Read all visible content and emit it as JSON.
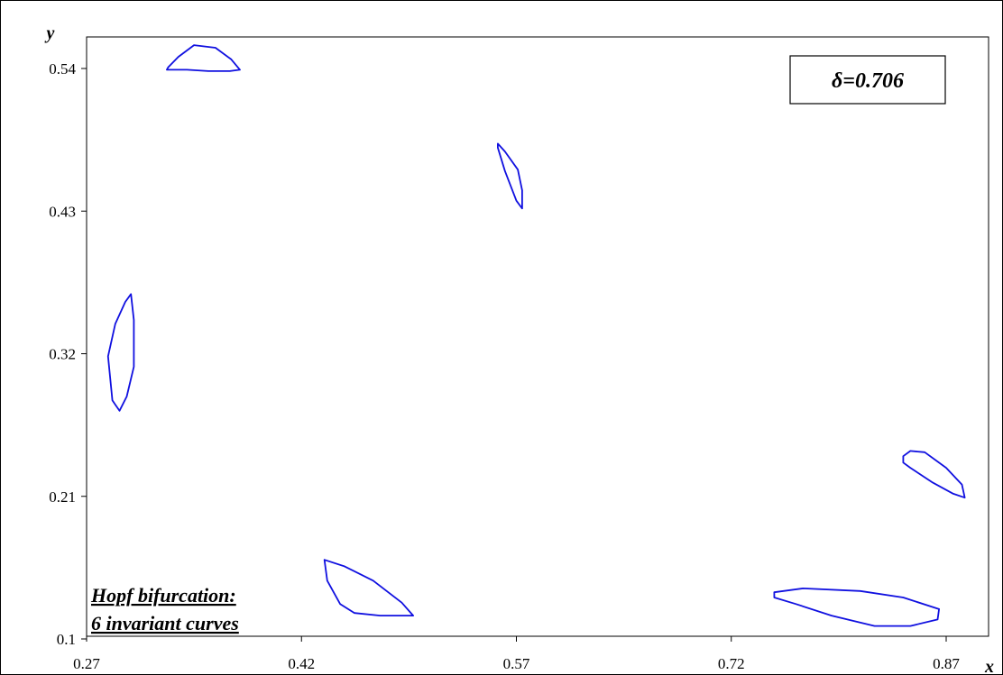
{
  "chart_data": {
    "type": "line",
    "xlabel": "x",
    "ylabel": "y",
    "xlim": [
      0.27,
      0.89
    ],
    "ylim": [
      0.1,
      0.565
    ],
    "grid": false,
    "x_ticks": [
      "0.27",
      "0.42",
      "0.57",
      "0.72",
      "0.87"
    ],
    "y_ticks": [
      "0.54",
      "0.43",
      "0.32",
      "0.21",
      "0.1"
    ],
    "x_tick_values": [
      0.27,
      0.42,
      0.57,
      0.72,
      0.87
    ],
    "y_tick_values": [
      0.54,
      0.43,
      0.32,
      0.21,
      0.1
    ],
    "annotation": "δ=0.706",
    "note_lines": [
      "Hopf bifurcation:",
      "6 invariant curves"
    ],
    "series": [
      {
        "color": "#1010e0",
        "x": [
          0.327,
          0.334,
          0.345,
          0.36,
          0.371,
          0.377,
          0.37,
          0.355,
          0.34,
          0.328,
          0.326,
          0.327
        ],
        "y": [
          0.541,
          0.549,
          0.558,
          0.556,
          0.547,
          0.539,
          0.538,
          0.538,
          0.539,
          0.539,
          0.539,
          0.541
        ]
      },
      {
        "color": "#1010e0",
        "x": [
          0.557,
          0.562,
          0.571,
          0.574,
          0.574,
          0.57,
          0.562,
          0.557,
          0.557
        ],
        "y": [
          0.482,
          0.476,
          0.462,
          0.446,
          0.432,
          0.438,
          0.461,
          0.479,
          0.482
        ]
      },
      {
        "color": "#1010e0",
        "x": [
          0.285,
          0.29,
          0.297,
          0.301,
          0.303,
          0.303,
          0.298,
          0.293,
          0.288,
          0.285
        ],
        "y": [
          0.318,
          0.343,
          0.36,
          0.366,
          0.346,
          0.31,
          0.287,
          0.276,
          0.284,
          0.318
        ]
      },
      {
        "color": "#1010e0",
        "x": [
          0.84,
          0.845,
          0.855,
          0.87,
          0.881,
          0.883,
          0.875,
          0.86,
          0.845,
          0.84,
          0.84
        ],
        "y": [
          0.241,
          0.245,
          0.244,
          0.232,
          0.219,
          0.209,
          0.212,
          0.221,
          0.232,
          0.236,
          0.241
        ]
      },
      {
        "color": "#1010e0",
        "x": [
          0.436,
          0.45,
          0.47,
          0.49,
          0.498,
          0.475,
          0.457,
          0.447,
          0.438,
          0.436
        ],
        "y": [
          0.161,
          0.156,
          0.145,
          0.128,
          0.118,
          0.118,
          0.12,
          0.127,
          0.145,
          0.161
        ]
      },
      {
        "color": "#1010e0",
        "x": [
          0.75,
          0.77,
          0.81,
          0.84,
          0.865,
          0.864,
          0.845,
          0.82,
          0.79,
          0.765,
          0.75,
          0.75
        ],
        "y": [
          0.136,
          0.139,
          0.137,
          0.132,
          0.123,
          0.115,
          0.11,
          0.11,
          0.118,
          0.127,
          0.132,
          0.136
        ]
      }
    ]
  }
}
